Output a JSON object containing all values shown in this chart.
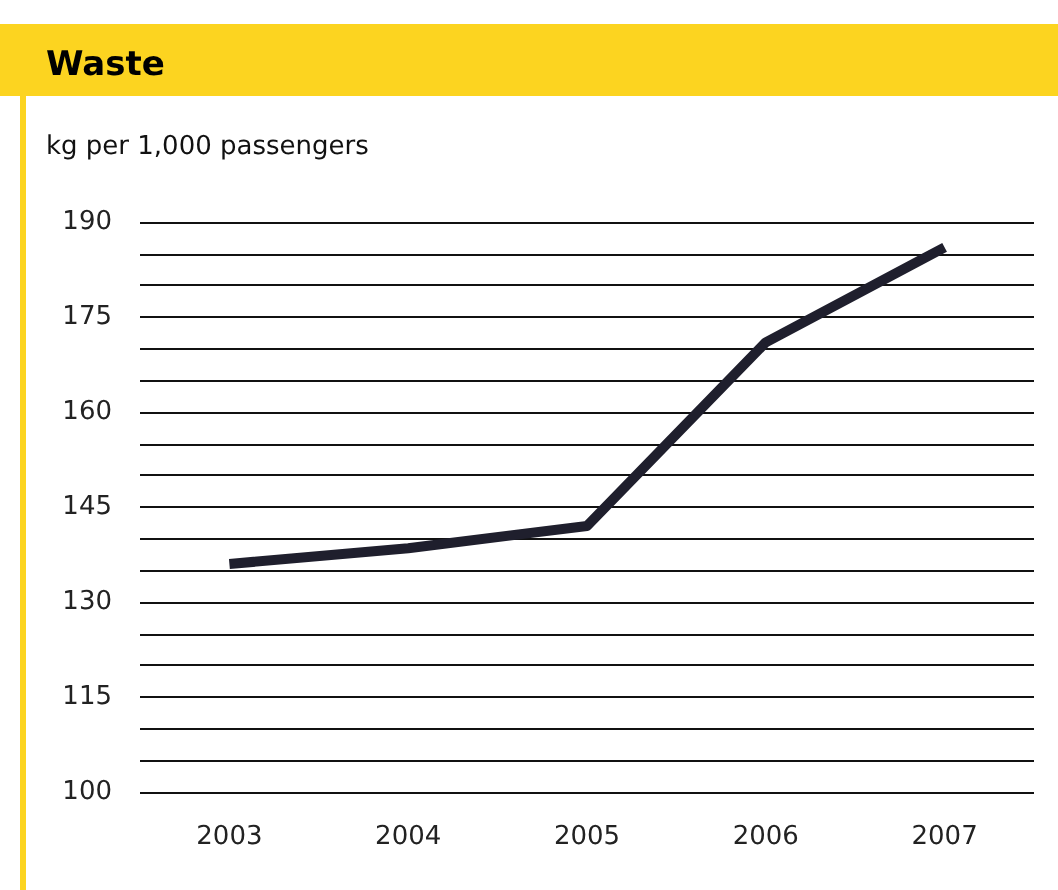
{
  "chart_data": {
    "type": "line",
    "title": "Waste",
    "ylabel": "kg per 1,000 passengers",
    "categories": [
      "2003",
      "2004",
      "2005",
      "2006",
      "2007"
    ],
    "series": [
      {
        "color": "#1f1f2d",
        "values": [
          136,
          138.5,
          142,
          171,
          186
        ]
      }
    ],
    "ylim": [
      100,
      190
    ],
    "yticks": [
      100,
      {
        "value": 105,
        "label": null
      },
      {
        "value": 110,
        "label": null
      },
      115,
      {
        "value": 120,
        "label": null
      },
      {
        "value": 125,
        "label": null
      },
      130,
      {
        "value": 135,
        "label": null
      },
      {
        "value": 140,
        "label": null
      },
      145,
      {
        "value": 150,
        "label": null
      },
      {
        "value": 155,
        "label": null
      },
      160,
      {
        "value": 165,
        "label": null
      },
      {
        "value": 170,
        "label": null
      },
      175,
      {
        "value": 180,
        "label": null
      },
      {
        "value": 185,
        "label": null
      },
      190
    ],
    "grid": "y",
    "marker": "none",
    "line_style": "solid"
  }
}
